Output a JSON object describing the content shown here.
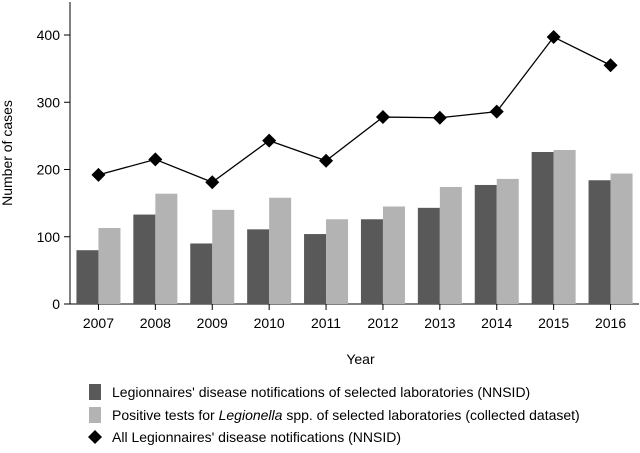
{
  "chart_data": {
    "type": "bar",
    "xlabel": "Year",
    "ylabel": "Number of cases",
    "ylim": [
      0,
      400
    ],
    "yticks": [
      0,
      100,
      200,
      300,
      400
    ],
    "categories": [
      "2007",
      "2008",
      "2009",
      "2010",
      "2011",
      "2012",
      "2013",
      "2014",
      "2015",
      "2016"
    ],
    "series": [
      {
        "name": "Legionnaires' disease notifications of selected laboratories (NNSID)",
        "kind": "bar",
        "color": "#595959",
        "values": [
          80,
          133,
          90,
          111,
          104,
          126,
          143,
          177,
          226,
          184
        ]
      },
      {
        "name_parts": [
          "Positive tests for ",
          "Legionella",
          " spp. of selected laboratories (collected dataset)"
        ],
        "kind": "bar",
        "color": "#b3b3b3",
        "values": [
          113,
          164,
          140,
          158,
          126,
          145,
          174,
          186,
          229,
          194
        ]
      },
      {
        "name": "All Legionnaires' disease notifications (NNSID)",
        "kind": "line",
        "marker": "diamond",
        "color": "#000000",
        "values": [
          192,
          215,
          181,
          243,
          213,
          278,
          277,
          286,
          397,
          355
        ]
      }
    ],
    "legend_position": "bottom",
    "grid": false
  }
}
